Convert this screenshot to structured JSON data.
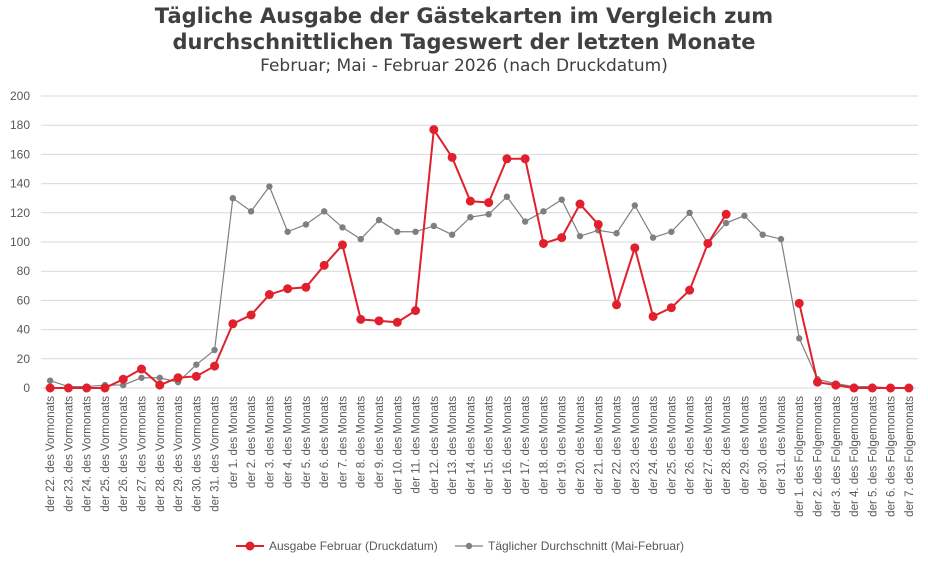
{
  "chart_data": {
    "type": "line",
    "title": "Tägliche Ausgabe der Gästekarten im Vergleich zum durchschnittlichen Tageswert der letzten Monate",
    "title_lines": [
      "Tägliche Ausgabe der Gästekarten im Vergleich zum",
      "durchschnittlichen Tageswert der letzten Monate"
    ],
    "subtitle": "Februar; Mai - Februar 2026 (nach Druckdatum)",
    "xlabel": "",
    "ylabel": "",
    "ylim": [
      0,
      200
    ],
    "yticks": [
      0,
      20,
      40,
      60,
      80,
      100,
      120,
      140,
      160,
      180,
      200
    ],
    "grid": true,
    "legend_position": "bottom",
    "categories": [
      "der 22. des Vormonats",
      "der 23. des Vormonats",
      "der 24. des Vormonats",
      "der 25. des Vormonats",
      "der 26. des Vormonats",
      "der 27. des Vormonats",
      "der 28. des Vormonats",
      "der 29. des Vormonats",
      "der 30. des Vormonats",
      "der 31. des Vormonats",
      "der 1. des Monats",
      "der 2. des Monats",
      "der 3. des Monats",
      "der 4. des Monats",
      "der 5. des Monats",
      "der 6. des Monats",
      "der 7. des Monats",
      "der 8. des Monats",
      "der 9. des Monats",
      "der 10. des Monats",
      "der 11. des Monats",
      "der 12. des Monats",
      "der 13. des Monats",
      "der 14. des Monats",
      "der 15. des Monats",
      "der 16. des Monats",
      "der 17. des Monats",
      "der 18. des Monats",
      "der 19. des Monats",
      "der 20. des Monats",
      "der 21. des Monats",
      "der 22. des Monats",
      "der 23. des Monats",
      "der 24. des Monats",
      "der 25. des Monats",
      "der 26. des Monats",
      "der 27. des Monats",
      "der 28. des Monats",
      "der 29. des Monats",
      "der 30. des Monats",
      "der 31. des Monats",
      "der 1. des Folgemonats",
      "der 2. des Folgemonats",
      "der 3. des Folgemonats",
      "der 4. des Folgemonats",
      "der 5. des Folgemonats",
      "der 6. des Folgemonats",
      "der 7. des Folgemonats"
    ],
    "series": [
      {
        "name": "Ausgabe Februar (Druckdatum)",
        "color": "#e0202c",
        "values": [
          0,
          0,
          0,
          0,
          6,
          13,
          2,
          7,
          8,
          15,
          44,
          50,
          64,
          68,
          69,
          84,
          98,
          47,
          46,
          45,
          53,
          177,
          158,
          128,
          127,
          157,
          157,
          99,
          103,
          126,
          112,
          57,
          96,
          49,
          55,
          67,
          99,
          119,
          null,
          null,
          null,
          58,
          4,
          2,
          0,
          0,
          0,
          0
        ]
      },
      {
        "name": "Täglicher Durchschnitt (Mai-Februar)",
        "color": "#7f7f7f",
        "values": [
          5,
          1,
          1,
          2,
          2,
          7,
          7,
          4,
          16,
          26,
          130,
          121,
          138,
          107,
          112,
          121,
          110,
          102,
          115,
          107,
          107,
          111,
          105,
          117,
          119,
          131,
          114,
          121,
          129,
          104,
          108,
          106,
          125,
          103,
          107,
          120,
          99,
          113,
          118,
          105,
          102,
          34,
          6,
          3,
          1,
          1,
          0,
          0
        ]
      }
    ]
  }
}
